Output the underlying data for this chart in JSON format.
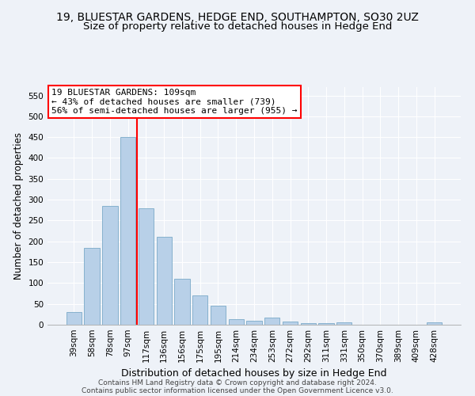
{
  "title": "19, BLUESTAR GARDENS, HEDGE END, SOUTHAMPTON, SO30 2UZ",
  "subtitle": "Size of property relative to detached houses in Hedge End",
  "xlabel": "Distribution of detached houses by size in Hedge End",
  "ylabel": "Number of detached properties",
  "categories": [
    "39sqm",
    "58sqm",
    "78sqm",
    "97sqm",
    "117sqm",
    "136sqm",
    "156sqm",
    "175sqm",
    "195sqm",
    "214sqm",
    "234sqm",
    "253sqm",
    "272sqm",
    "292sqm",
    "311sqm",
    "331sqm",
    "350sqm",
    "370sqm",
    "389sqm",
    "409sqm",
    "428sqm"
  ],
  "values": [
    30,
    185,
    285,
    450,
    280,
    210,
    110,
    70,
    45,
    13,
    10,
    18,
    8,
    4,
    4,
    6,
    0,
    0,
    0,
    0,
    5
  ],
  "bar_color": "#b8d0e8",
  "bar_edge_color": "#7aaac8",
  "annotation_box_text": "19 BLUESTAR GARDENS: 109sqm\n← 43% of detached houses are smaller (739)\n56% of semi-detached houses are larger (955) →",
  "annotation_box_color": "white",
  "annotation_box_edge_color": "red",
  "vline_color": "red",
  "vline_x": 3.5,
  "ylim": [
    0,
    570
  ],
  "yticks": [
    0,
    50,
    100,
    150,
    200,
    250,
    300,
    350,
    400,
    450,
    500,
    550
  ],
  "footer1": "Contains HM Land Registry data © Crown copyright and database right 2024.",
  "footer2": "Contains public sector information licensed under the Open Government Licence v3.0.",
  "title_fontsize": 10,
  "subtitle_fontsize": 9.5,
  "xlabel_fontsize": 9,
  "ylabel_fontsize": 8.5,
  "tick_fontsize": 7.5,
  "annotation_fontsize": 8,
  "footer_fontsize": 6.5,
  "background_color": "#eef2f8",
  "grid_color": "#ffffff"
}
